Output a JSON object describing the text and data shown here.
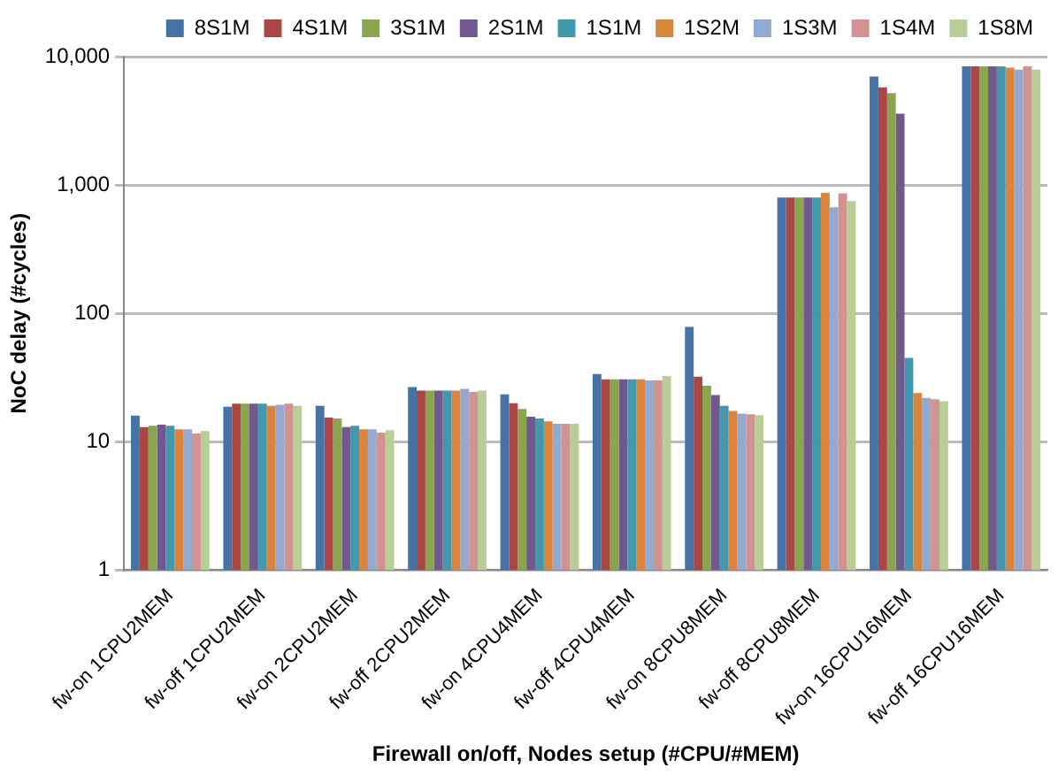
{
  "chart_data": {
    "type": "bar",
    "xlabel": "Firewall on/off, Nodes setup (#CPU/#MEM)",
    "ylabel": "NoC delay (#cycles)",
    "categories": [
      "fw-on 1CPU2MEM",
      "fw-off 1CPU2MEM",
      "fw-on 2CPU2MEM",
      "fw-off 2CPU2MEM",
      "fw-on 4CPU4MEM",
      "fw-off 4CPU4MEM",
      "fw-on 8CPU8MEM",
      "fw-off 8CPU8MEM",
      "fw-on 16CPU16MEM",
      "fw-off 16CPU16MEM"
    ],
    "series": [
      {
        "name": "8S1M",
        "color": "#4572a7",
        "values": [
          16,
          18.7,
          19,
          26.7,
          23.4,
          33.7,
          78.5,
          800,
          7000,
          8400
        ]
      },
      {
        "name": "4S1M",
        "color": "#aa4643",
        "values": [
          13,
          19.8,
          15.4,
          25,
          20,
          30.6,
          32.2,
          800,
          5750,
          8400
        ]
      },
      {
        "name": "3S1M",
        "color": "#89a54e",
        "values": [
          13.3,
          19.8,
          15.2,
          25,
          18,
          30.6,
          27.3,
          800,
          5200,
          8400
        ]
      },
      {
        "name": "2S1M",
        "color": "#71588f",
        "values": [
          13.6,
          19.8,
          13,
          25,
          15.7,
          30.6,
          23.1,
          800,
          3600,
          8400
        ]
      },
      {
        "name": "1S1M",
        "color": "#4198af",
        "values": [
          13.3,
          19.8,
          13.3,
          25,
          15.2,
          30.6,
          19,
          800,
          45,
          8400
        ]
      },
      {
        "name": "1S2M",
        "color": "#db843d",
        "values": [
          12.5,
          19,
          12.5,
          25,
          14.4,
          30.6,
          17.4,
          870,
          24,
          8200
        ]
      },
      {
        "name": "1S3M",
        "color": "#93a9cf",
        "values": [
          12.5,
          19.4,
          12.5,
          25.8,
          13.8,
          30,
          16.6,
          670,
          22,
          7900
        ]
      },
      {
        "name": "1S4M",
        "color": "#d19392",
        "values": [
          11.6,
          19.8,
          11.8,
          24.4,
          13.8,
          30,
          16.4,
          860,
          21.4,
          8400
        ]
      },
      {
        "name": "1S8M",
        "color": "#b9cd96",
        "values": [
          12.1,
          19,
          12.3,
          25,
          13.8,
          32.5,
          16.1,
          750,
          20.7,
          7900
        ]
      }
    ],
    "log": "y",
    "ylim": [
      1,
      10000
    ],
    "yticks": [
      1,
      10,
      100,
      {
        "value": 1000,
        "label": "1,000"
      },
      {
        "value": 10000,
        "label": "10,000"
      }
    ],
    "grid": "y",
    "legend": "top"
  }
}
